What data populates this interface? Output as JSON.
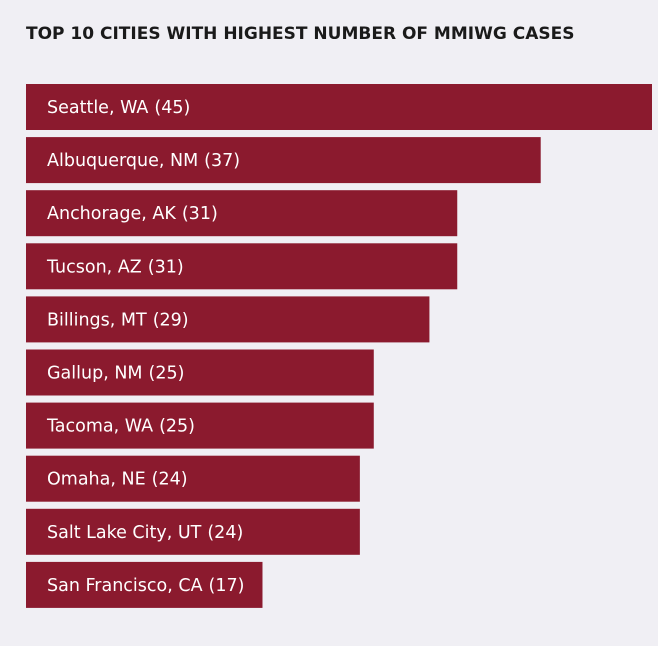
{
  "chart_data": {
    "type": "bar",
    "orientation": "horizontal",
    "title": "TOP 10 CITIES WITH HIGHEST NUMBER OF MMIWG CASES",
    "categories": [
      "Seattle, WA",
      "Albuquerque, NM",
      "Anchorage, AK",
      "Tucson, AZ",
      "Billings, MT",
      "Gallup, NM",
      "Tacoma, WA",
      "Omaha, NE",
      "Salt Lake City, UT",
      "San Francisco, CA"
    ],
    "values": [
      45,
      37,
      31,
      31,
      29,
      25,
      25,
      24,
      24,
      17
    ],
    "value_labels": [
      "(45)",
      "(37)",
      "(31)",
      "(31)",
      "(29)",
      "(25)",
      "(25)",
      "(24)",
      "(24)",
      "(17)"
    ],
    "color": "#8b1a2e"
  }
}
